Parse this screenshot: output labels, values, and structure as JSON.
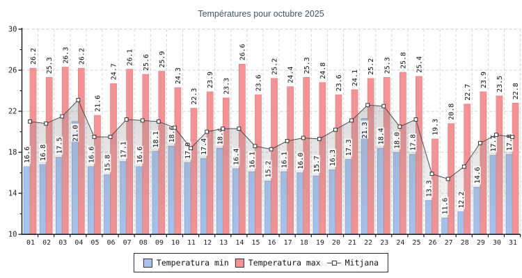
{
  "title": "Températures pour octubre 2025",
  "colors": {
    "min_bar": "#a6c3ee",
    "min_bar_border": "#7d9ed2",
    "max_bar": "#f49396",
    "max_bar_border": "#dd8184",
    "mean_line": "#4d4d4d",
    "marker_fill": "#ffffff",
    "marker_border": "#333333",
    "area_fill": "#8a8a8a",
    "grid": "#cccccc",
    "axis": "#000000",
    "tick_text": "#20232e",
    "bar_label_text": "#111111",
    "title_text": "#46526e"
  },
  "chart_data": {
    "type": "bar",
    "title": "Températures pour octubre 2025",
    "categories": [
      "01",
      "02",
      "03",
      "04",
      "05",
      "06",
      "07",
      "08",
      "09",
      "10",
      "11",
      "12",
      "13",
      "14",
      "15",
      "16",
      "17",
      "18",
      "19",
      "20",
      "21",
      "22",
      "23",
      "24",
      "25",
      "26",
      "27",
      "28",
      "29",
      "30",
      "31"
    ],
    "series": [
      {
        "name": "Temperatura min",
        "type": "bar",
        "values": [
          16.6,
          16.8,
          17.5,
          21.0,
          16.6,
          15.8,
          17.1,
          16.6,
          18.1,
          18.6,
          17.0,
          17.4,
          18.4,
          16.4,
          16.1,
          15.2,
          16.1,
          16.0,
          15.7,
          16.3,
          17.3,
          21.3,
          18.4,
          18.0,
          17.8,
          13.3,
          11.6,
          12.2,
          14.6,
          17.7,
          17.8
        ]
      },
      {
        "name": "Temperatura max",
        "type": "bar",
        "values": [
          26.2,
          25.3,
          26.3,
          26.2,
          21.6,
          24.7,
          26.1,
          25.6,
          25.9,
          24.3,
          22.3,
          23.9,
          23.3,
          26.6,
          23.6,
          25.2,
          24.4,
          25.3,
          24.8,
          23.6,
          24.1,
          25.2,
          25.3,
          25.8,
          25.4,
          19.3,
          20.8,
          22.7,
          23.9,
          23.5,
          22.8
        ]
      },
      {
        "name": "Mitjana",
        "type": "line",
        "values": [
          21.0,
          20.8,
          21.5,
          23.1,
          19.5,
          19.5,
          21.2,
          21.1,
          21.0,
          20.4,
          18.4,
          20.0,
          20.3,
          20.3,
          18.6,
          18.3,
          19.1,
          19.4,
          19.3,
          20.2,
          21.1,
          22.6,
          22.5,
          20.5,
          21.2,
          15.9,
          15.4,
          16.6,
          18.9,
          19.7,
          19.5
        ]
      }
    ],
    "xlabel": "",
    "ylabel": "",
    "ylim": [
      10,
      30
    ],
    "yticks": [
      10,
      14,
      18,
      22,
      26,
      30
    ],
    "y_minor_ticks": [
      12,
      16,
      20,
      24,
      28
    ],
    "grid": true,
    "bar_value_labels": true,
    "legend_position": "bottom"
  }
}
